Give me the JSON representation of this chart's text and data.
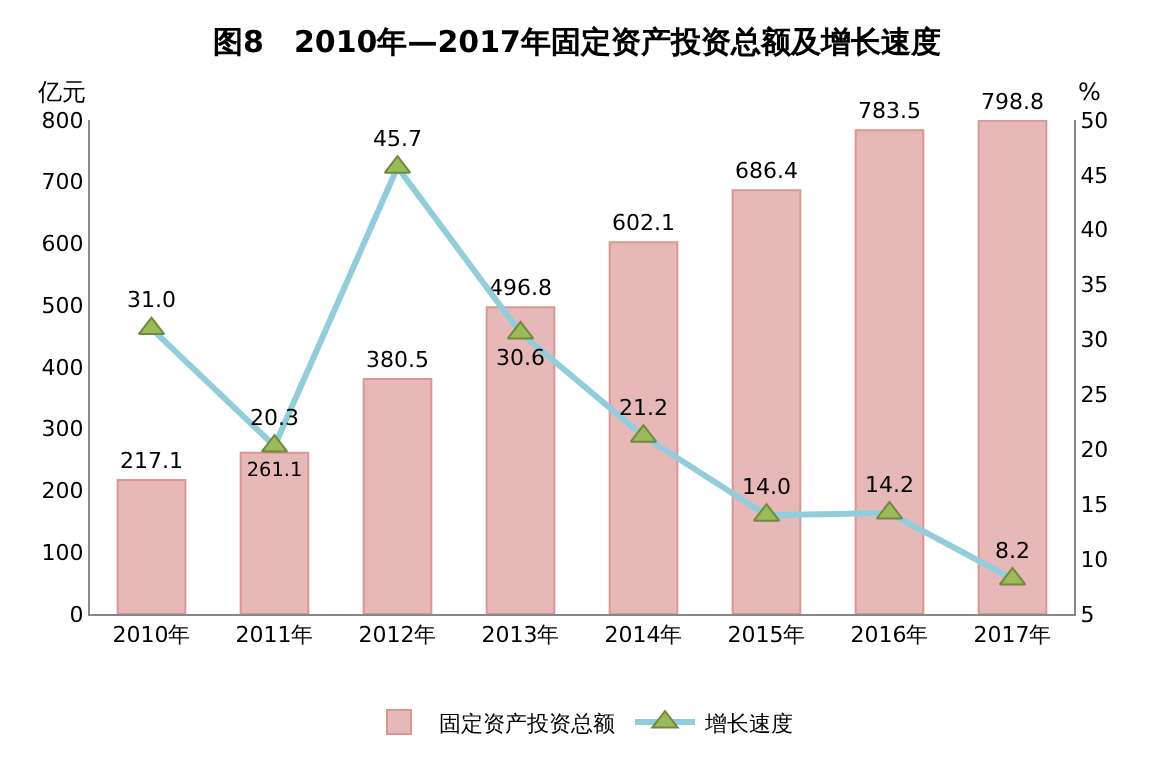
{
  "chart_data": {
    "type": "bar",
    "title": "图8　2010年—2017年固定资产投资总额及增长速度",
    "ylabel": "亿元",
    "y2label": "%",
    "categories": [
      "2010年",
      "2011年",
      "2012年",
      "2013年",
      "2014年",
      "2015年",
      "2016年",
      "2017年"
    ],
    "series": [
      {
        "name": "固定资产投资总额",
        "color": "#e6b8b7",
        "values": [
          217.1,
          261.1,
          380.5,
          496.8,
          602.1,
          686.4,
          783.5,
          798.8
        ]
      },
      {
        "name": "增长速度",
        "type": "line",
        "axis": "y2",
        "color": "#92cddc",
        "marker": "triangle",
        "values": [
          31.0,
          20.3,
          45.7,
          30.6,
          21.2,
          14.0,
          14.2,
          8.2
        ],
        "value_labels": [
          "31.0",
          "20.3",
          "45.7",
          "30.6",
          "21.2",
          "14.0",
          "14.2",
          "8.2"
        ]
      }
    ],
    "ylim": [
      0,
      800
    ],
    "yticks": [
      0,
      100,
      200,
      300,
      400,
      500,
      600,
      700,
      800
    ],
    "y2lim": [
      5,
      50
    ],
    "y2ticks": [
      5,
      10,
      15,
      20,
      25,
      30,
      35,
      40,
      45,
      50
    ],
    "data_labels": true,
    "grid": false,
    "legend": "bottom"
  }
}
